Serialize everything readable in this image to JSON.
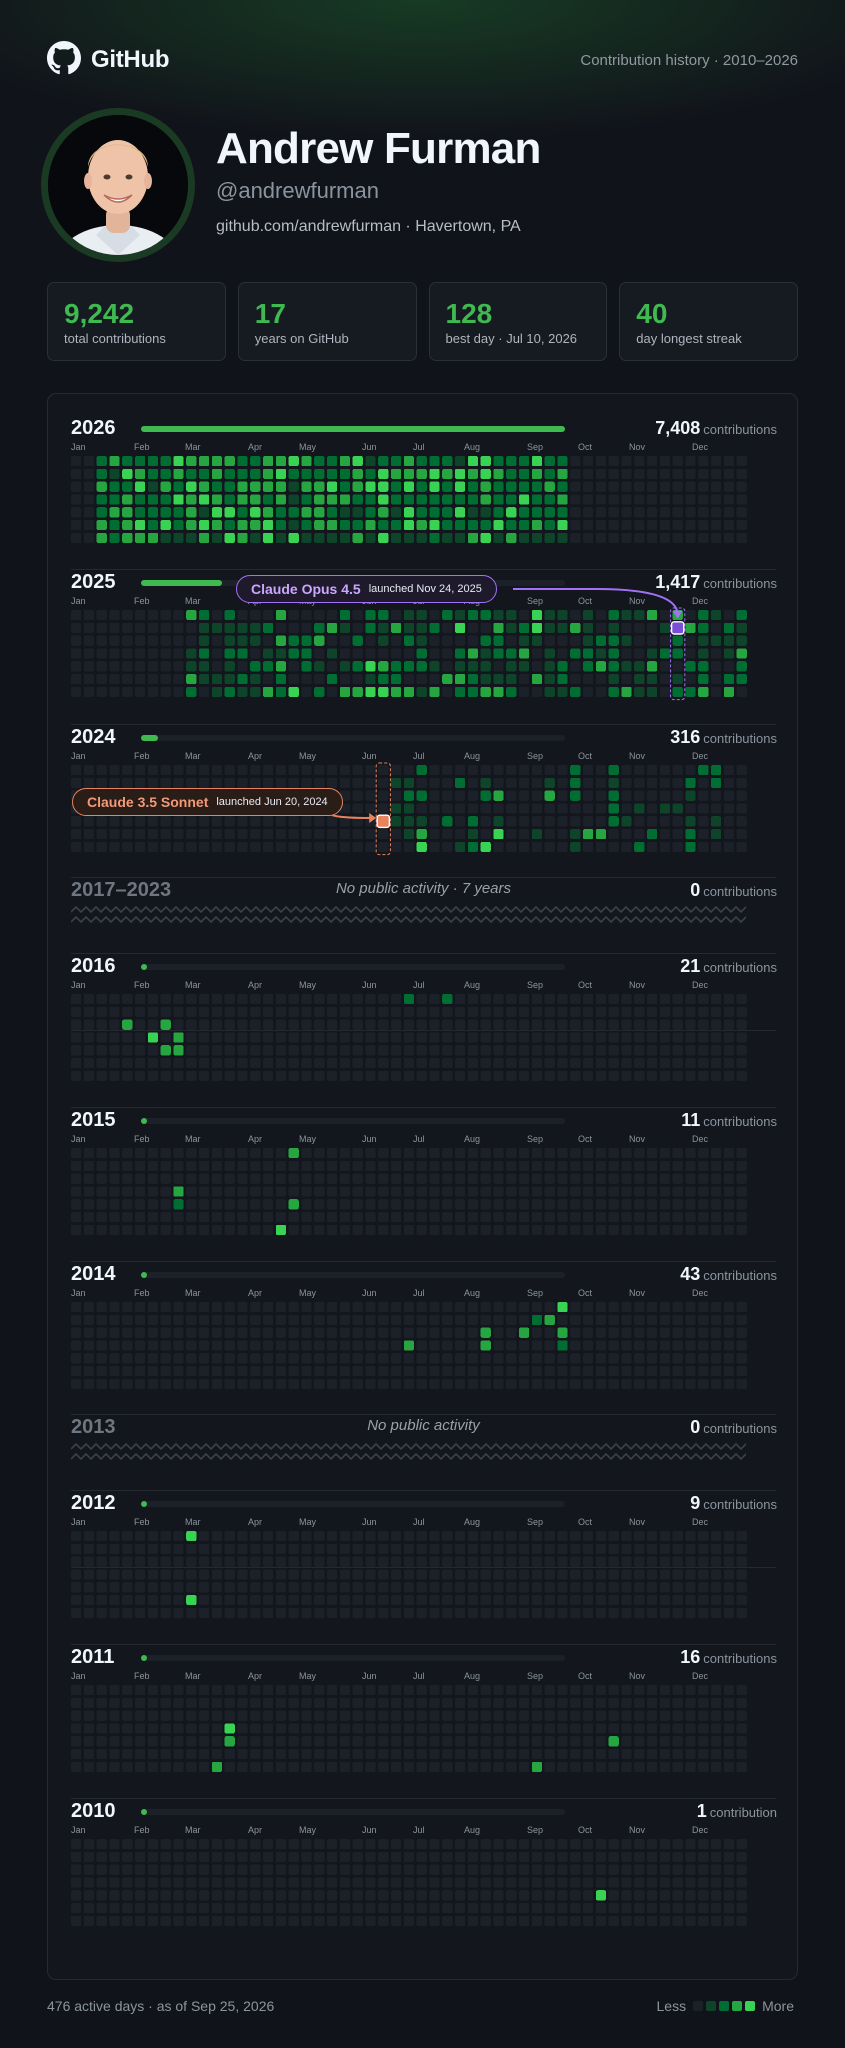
{
  "header": {
    "brand": "GitHub",
    "subtitle": "Contribution history · 2010–2026"
  },
  "profile": {
    "name": "Andrew Furman",
    "handle": "@andrewfurman",
    "meta": "github.com/andrewfurman · Havertown, PA"
  },
  "stats": [
    {
      "value": "9,242",
      "label": "total contributions"
    },
    {
      "value": "17",
      "label": "years on GitHub"
    },
    {
      "value": "128",
      "label": "best day · Jul 10, 2026"
    },
    {
      "value": "40",
      "label": "day longest streak"
    }
  ],
  "colors": {
    "empty": "#1c2028",
    "l1": "#0e4429",
    "l2": "#006d32",
    "l3": "#26a641",
    "l4": "#39d353",
    "accent": "#3fb950",
    "opus": "#a371f7",
    "sonnet": "#e8835f"
  },
  "years": [
    {
      "year": "2026",
      "count": "7,408",
      "unit": "contributions",
      "fraction": 1.0,
      "months": [
        "Jan",
        "Feb",
        "Mar",
        "Apr",
        "May",
        "Jun",
        "Jul",
        "Aug",
        "Sep",
        "Oct",
        "Nov",
        "Dec"
      ],
      "pattern": "dense",
      "active_weeks": [
        2,
        38
      ]
    },
    {
      "year": "2025",
      "count": "1,417",
      "unit": "contributions",
      "fraction": 0.19,
      "months": [
        "Jan",
        "Feb",
        "Mar",
        "Apr",
        "May",
        "Jun",
        "Jul",
        "Aug",
        "Sep",
        "Oct",
        "Nov",
        "Dec"
      ],
      "pattern": "medium",
      "active_weeks": [
        9,
        52
      ],
      "callout": {
        "name": "Claude Opus 4.5",
        "date": "launched Nov 24, 2025",
        "style": "opus",
        "week": 47,
        "day": 1
      }
    },
    {
      "year": "2024",
      "count": "316",
      "unit": "contributions",
      "fraction": 0.04,
      "months": [
        "Jan",
        "Feb",
        "Mar",
        "Apr",
        "May",
        "Jun",
        "Jul",
        "Aug",
        "Sep",
        "Oct",
        "Nov",
        "Dec"
      ],
      "pattern": "sparse",
      "active_weeks": [
        24,
        51
      ],
      "callout": {
        "name": "Claude 3.5 Sonnet",
        "date": "launched Jun 20, 2024",
        "style": "sonnet",
        "week": 24,
        "day": 4
      }
    },
    {
      "gap": true,
      "year": "2017–2023",
      "note": "No public activity · 7 years",
      "count": "0",
      "unit": "contributions"
    },
    {
      "year": "2016",
      "count": "21",
      "unit": "contributions",
      "fraction": 0.003,
      "months": [
        "Jan",
        "Feb",
        "Mar",
        "Apr",
        "May",
        "Jun",
        "Jul",
        "Aug",
        "Sep",
        "Oct",
        "Nov",
        "Dec"
      ],
      "cells": [
        [
          4,
          2,
          3
        ],
        [
          6,
          3,
          4
        ],
        [
          7,
          2,
          3
        ],
        [
          7,
          4,
          3
        ],
        [
          8,
          4,
          3
        ],
        [
          8,
          3,
          3
        ],
        [
          26,
          0,
          2
        ],
        [
          29,
          0,
          2
        ]
      ]
    },
    {
      "year": "2015",
      "count": "11",
      "unit": "contributions",
      "fraction": 0.002,
      "months": [
        "Jan",
        "Feb",
        "Mar",
        "Apr",
        "May",
        "Jun",
        "Jul",
        "Aug",
        "Sep",
        "Oct",
        "Nov",
        "Dec"
      ],
      "cells": [
        [
          8,
          3,
          3
        ],
        [
          8,
          4,
          2
        ],
        [
          17,
          0,
          3
        ],
        [
          17,
          4,
          3
        ],
        [
          16,
          6,
          4
        ]
      ]
    },
    {
      "year": "2014",
      "count": "43",
      "unit": "contributions",
      "fraction": 0.006,
      "months": [
        "Jan",
        "Feb",
        "Mar",
        "Apr",
        "May",
        "Jun",
        "Jul",
        "Aug",
        "Sep",
        "Oct",
        "Nov",
        "Dec"
      ],
      "cells": [
        [
          38,
          0,
          4
        ],
        [
          37,
          1,
          3
        ],
        [
          36,
          1,
          2
        ],
        [
          35,
          2,
          3
        ],
        [
          38,
          2,
          3
        ],
        [
          32,
          2,
          3
        ],
        [
          32,
          3,
          3
        ],
        [
          26,
          3,
          3
        ],
        [
          38,
          3,
          2
        ]
      ]
    },
    {
      "gap": true,
      "year": "2013",
      "note": "No public activity",
      "count": "0",
      "unit": "contributions"
    },
    {
      "year": "2012",
      "count": "9",
      "unit": "contributions",
      "fraction": 0.001,
      "months": [
        "Jan",
        "Feb",
        "Mar",
        "Apr",
        "May",
        "Jun",
        "Jul",
        "Aug",
        "Sep",
        "Oct",
        "Nov",
        "Dec"
      ],
      "cells": [
        [
          9,
          0,
          4
        ],
        [
          9,
          5,
          4
        ]
      ]
    },
    {
      "year": "2011",
      "count": "16",
      "unit": "contributions",
      "fraction": 0.002,
      "months": [
        "Jan",
        "Feb",
        "Mar",
        "Apr",
        "May",
        "Jun",
        "Jul",
        "Aug",
        "Sep",
        "Oct",
        "Nov",
        "Dec"
      ],
      "cells": [
        [
          12,
          3,
          4
        ],
        [
          12,
          4,
          3
        ],
        [
          11,
          6,
          3
        ],
        [
          36,
          6,
          3
        ],
        [
          42,
          4,
          3
        ]
      ]
    },
    {
      "year": "2010",
      "count": "1",
      "unit": "contribution",
      "fraction": 0.0003,
      "months": [
        "Jan",
        "Feb",
        "Mar",
        "Apr",
        "May",
        "Jun",
        "Jul",
        "Aug",
        "Sep",
        "Oct",
        "Nov",
        "Dec"
      ],
      "cells": [
        [
          41,
          4,
          4
        ]
      ]
    }
  ],
  "footer": {
    "summary": "476 active days · as of Sep 25, 2026",
    "less": "Less",
    "more": "More"
  }
}
